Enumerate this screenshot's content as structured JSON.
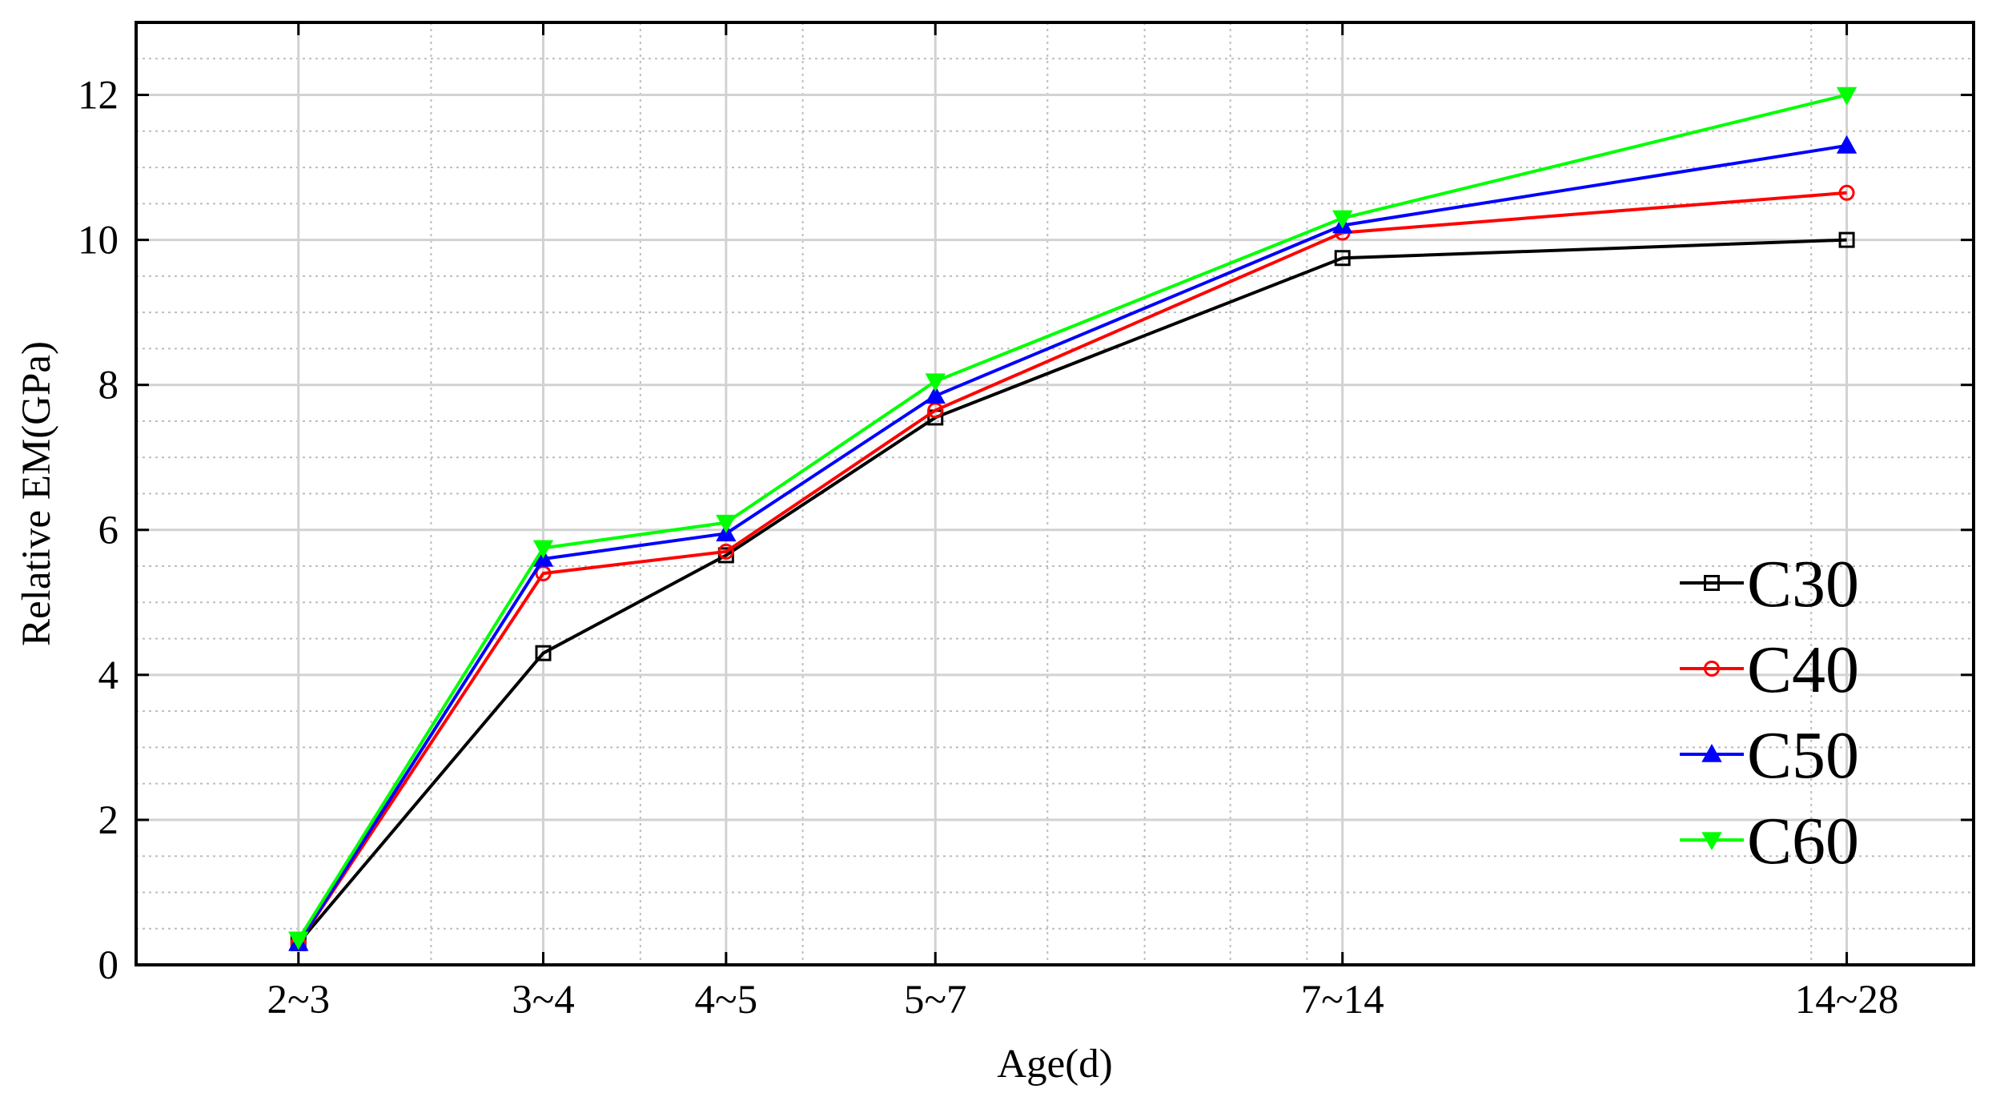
{
  "chart_data": {
    "type": "line",
    "categories": [
      "2~3",
      "3~4",
      "4~5",
      "5~7",
      "7~14",
      "14~28"
    ],
    "x": [
      2.5,
      3.5,
      4.5,
      6,
      10.5,
      21
    ],
    "xlabel": "Age(d)",
    "ylabel": "Relative EM(GPa)",
    "xscale": "log",
    "xlim": [
      2,
      25
    ],
    "ylim": [
      0,
      13
    ],
    "yticks": [
      0,
      2,
      4,
      6,
      8,
      10,
      12
    ],
    "grid": true,
    "minor_grid": true,
    "legend_position": "bottom-right",
    "series": [
      {
        "name": "C30",
        "color": "#000000",
        "marker": "square",
        "values": [
          0.3,
          4.3,
          5.65,
          7.55,
          9.75,
          10.0
        ]
      },
      {
        "name": "C40",
        "color": "#ff0000",
        "marker": "circle",
        "values": [
          0.3,
          5.4,
          5.7,
          7.65,
          10.1,
          10.65
        ]
      },
      {
        "name": "C50",
        "color": "#0000ff",
        "marker": "triangle-up",
        "values": [
          0.3,
          5.6,
          5.95,
          7.85,
          10.2,
          11.3
        ]
      },
      {
        "name": "C60",
        "color": "#00ff00",
        "marker": "triangle-down",
        "values": [
          0.35,
          5.75,
          6.1,
          8.05,
          10.3,
          12.0
        ]
      }
    ]
  }
}
